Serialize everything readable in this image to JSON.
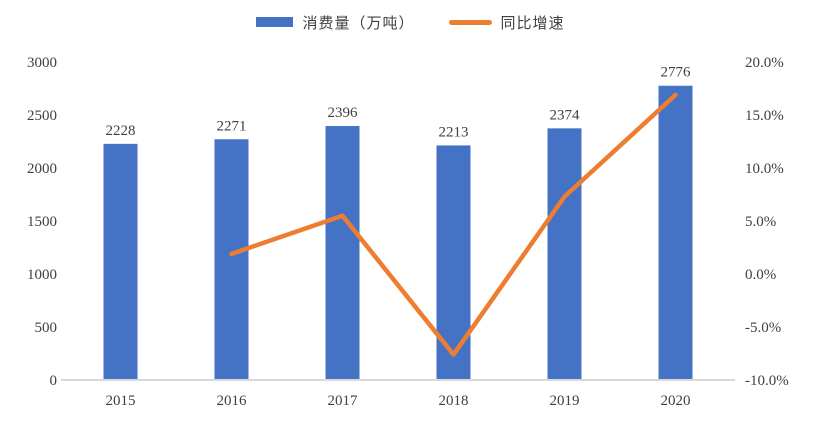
{
  "chart_data": {
    "type": "bar",
    "subtype": "combo-bar-line",
    "title": "",
    "categories": [
      "2015",
      "2016",
      "2017",
      "2018",
      "2019",
      "2020"
    ],
    "series": [
      {
        "name": "消费量（万吨）",
        "type": "bar",
        "axis": "left",
        "color": "#4472C4",
        "values": [
          2228,
          2271,
          2396,
          2213,
          2374,
          2776
        ],
        "data_labels": [
          "2228",
          "2271",
          "2396",
          "2213",
          "2374",
          "2776"
        ]
      },
      {
        "name": "同比增速",
        "type": "line",
        "axis": "right",
        "color": "#ED7D31",
        "values": [
          null,
          1.9,
          5.5,
          -7.6,
          7.3,
          16.9
        ]
      }
    ],
    "left_axis": {
      "min": 0,
      "max": 3000,
      "step": 500,
      "tick_labels": [
        "0",
        "500",
        "1000",
        "1500",
        "2000",
        "2500",
        "3000"
      ]
    },
    "right_axis": {
      "min": -10,
      "max": 20,
      "step": 5,
      "tick_labels": [
        "-10.0%",
        "-5.0%",
        "0.0%",
        "5.0%",
        "10.0%",
        "15.0%",
        "20.0%"
      ]
    },
    "legend_position": "top",
    "grid": "off",
    "colors": {
      "bar": "#4472C4",
      "line": "#ED7D31",
      "axis_line": "#D9D9D9",
      "text": "#404040"
    }
  }
}
